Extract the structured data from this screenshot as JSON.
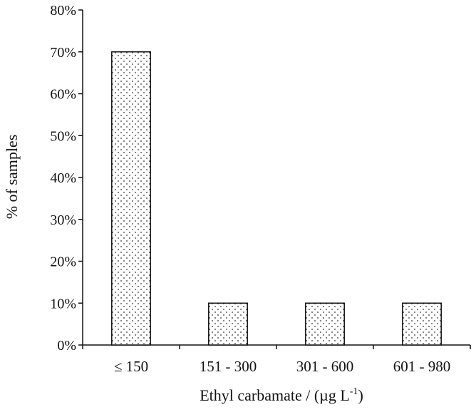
{
  "chart_data": {
    "type": "bar",
    "categories": [
      "≤ 150",
      "151 - 300",
      "301 - 600",
      "601 - 980"
    ],
    "values": [
      70,
      10,
      10,
      10
    ],
    "ylim": [
      0,
      80
    ],
    "yticks": [
      0,
      10,
      20,
      30,
      40,
      50,
      60,
      70,
      80
    ],
    "ytick_labels": [
      "0%",
      "10%",
      "20%",
      "30%",
      "40%",
      "50%",
      "60%",
      "70%",
      "80%"
    ],
    "xlabel": "Ethyl carbamate / (µg L",
    "xlabel_sup": "-1",
    "xlabel_tail": ")",
    "ylabel": "% of samples",
    "grid": false,
    "legend": "none",
    "bar_fill": "dotted",
    "colors": {
      "bar_stroke": "#111111",
      "dot": "#333333",
      "axis": "#111111"
    }
  }
}
